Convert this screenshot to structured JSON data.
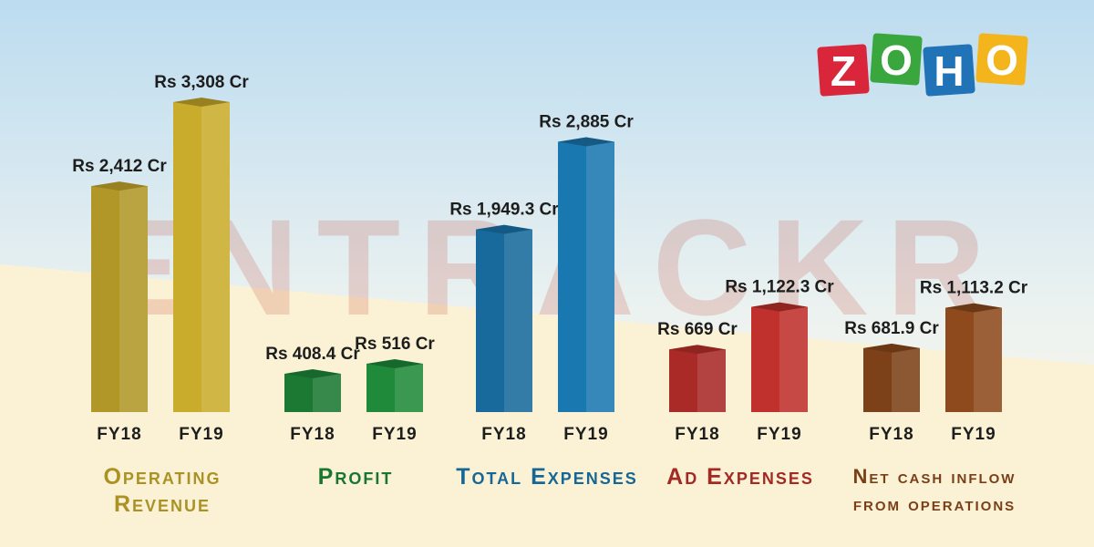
{
  "watermark": "ENTRACKR",
  "logo": [
    "Z",
    "O",
    "H",
    "O"
  ],
  "chart_data": {
    "type": "bar",
    "categories": [
      "Operating Revenue",
      "Profit",
      "Total Expenses",
      "Ad Expenses",
      "Net cash inflow from operations"
    ],
    "colors": [
      "#c9ac2c",
      "#1f8a3a",
      "#1a78b0",
      "#c0302c",
      "#8e4a1c"
    ],
    "series": [
      {
        "name": "FY18",
        "values": [
          2412,
          408.4,
          1949.3,
          669,
          681.9
        ],
        "value_labels": [
          "Rs 2,412 Cr",
          "Rs 408.4 Cr",
          "Rs 1,949.3 Cr",
          "Rs 669 Cr",
          "Rs 681.9 Cr"
        ]
      },
      {
        "name": "FY19",
        "values": [
          3308,
          516,
          2885,
          1122.3,
          1113.2
        ],
        "value_labels": [
          "Rs 3,308 Cr",
          "Rs 516 Cr",
          "Rs 2,885 Cr",
          "Rs 1,122.3 Cr",
          "Rs 1,113.2 Cr"
        ]
      }
    ]
  }
}
